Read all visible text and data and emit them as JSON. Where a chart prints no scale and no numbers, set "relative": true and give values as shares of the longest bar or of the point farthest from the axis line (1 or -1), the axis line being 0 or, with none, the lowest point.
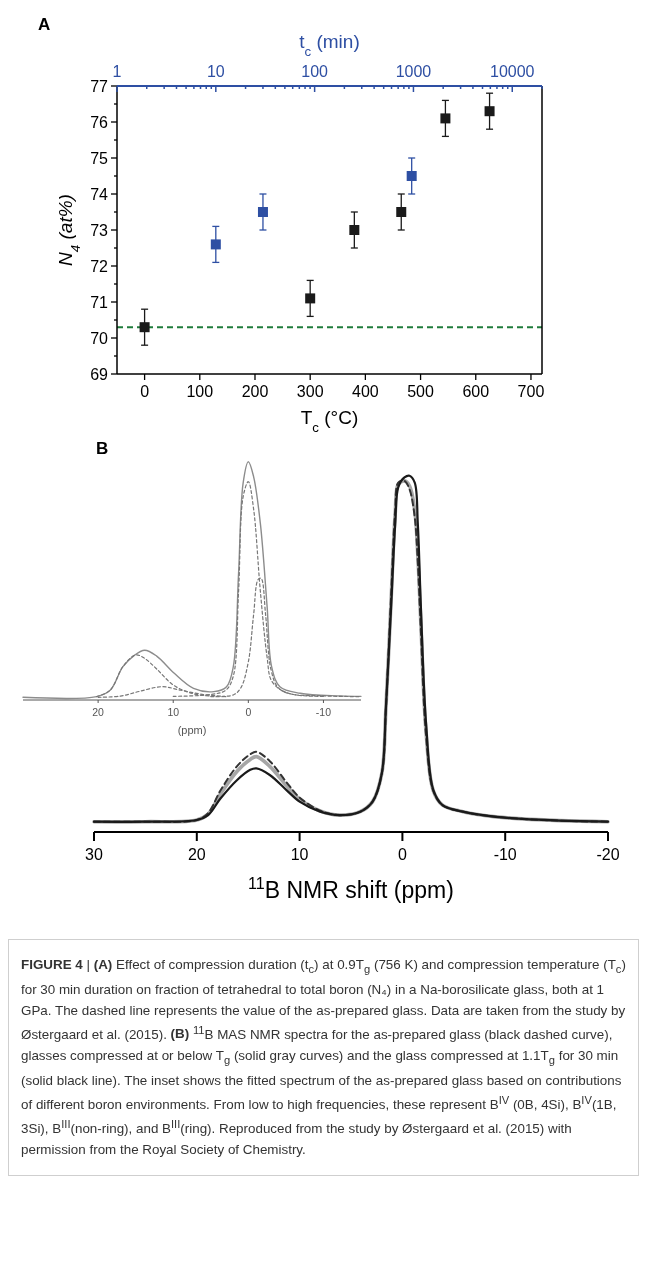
{
  "chart_data": [
    {
      "type": "scatter",
      "title": "A",
      "xlabel": "T$_{c}$ (°C)",
      "x2label": "t$_{c}$ (min)",
      "ylabel": "N$_{4}$ (at%)",
      "marker": "square",
      "log": "x2",
      "xlim": [
        -50,
        720
      ],
      "xticks": [
        0,
        100,
        200,
        300,
        400,
        500,
        600,
        700
      ],
      "x2lim": [
        1,
        20000
      ],
      "x2ticks": [
        1,
        {
          "value": 2,
          "label": null
        },
        {
          "value": 3,
          "label": null
        },
        {
          "value": 4,
          "label": null
        },
        {
          "value": 5,
          "label": null
        },
        {
          "value": 6,
          "label": null
        },
        {
          "value": 7,
          "label": null
        },
        {
          "value": 8,
          "label": null
        },
        {
          "value": 9,
          "label": null
        },
        10,
        {
          "value": 20,
          "label": null
        },
        {
          "value": 30,
          "label": null
        },
        {
          "value": 40,
          "label": null
        },
        {
          "value": 50,
          "label": null
        },
        {
          "value": 60,
          "label": null
        },
        {
          "value": 70,
          "label": null
        },
        {
          "value": 80,
          "label": null
        },
        {
          "value": 90,
          "label": null
        },
        100,
        {
          "value": 200,
          "label": null
        },
        {
          "value": 300,
          "label": null
        },
        {
          "value": 400,
          "label": null
        },
        {
          "value": 500,
          "label": null
        },
        {
          "value": 600,
          "label": null
        },
        {
          "value": 700,
          "label": null
        },
        {
          "value": 800,
          "label": null
        },
        {
          "value": 900,
          "label": null
        },
        1000,
        {
          "value": 2000,
          "label": null
        },
        {
          "value": 3000,
          "label": null
        },
        {
          "value": 4000,
          "label": null
        },
        {
          "value": 5000,
          "label": null
        },
        {
          "value": 6000,
          "label": null
        },
        {
          "value": 7000,
          "label": null
        },
        {
          "value": 8000,
          "label": null
        },
        {
          "value": 9000,
          "label": null
        },
        10000,
        {
          "value": 20000,
          "label": null
        }
      ],
      "ylim": [
        69,
        77
      ],
      "yticks": [
        69,
        {
          "value": 69.5,
          "label": null
        },
        70,
        {
          "value": 70.5,
          "label": null
        },
        71,
        {
          "value": 71.5,
          "label": null
        },
        72,
        {
          "value": 72.5,
          "label": null
        },
        73,
        {
          "value": 73.5,
          "label": null
        },
        74,
        {
          "value": 74.5,
          "label": null
        },
        75,
        {
          "value": 75.5,
          "label": null
        },
        76,
        {
          "value": 76.5,
          "label": null
        },
        77
      ],
      "series": [
        {
          "color": "#1a1a1a",
          "x": [
            0,
            300,
            380,
            465,
            545,
            625
          ],
          "values": [
            70.3,
            71.1,
            73.0,
            73.5,
            76.1,
            76.3
          ],
          "errors": [
            0.5,
            0.5,
            0.5,
            0.5,
            0.5,
            0.5
          ]
        },
        {
          "color": "#2e4fa3",
          "axis": "x2",
          "x": [
            10,
            30,
            960
          ],
          "values": [
            72.6,
            73.5,
            74.5
          ],
          "errors": [
            0.5,
            0.5,
            0.5
          ]
        }
      ],
      "ref_lines": [
        {
          "axis": "y",
          "value": 70.3,
          "color": "#1e7b3a",
          "line_style": "dashed"
        }
      ]
    },
    {
      "type": "line",
      "title": "B",
      "xlabel": "$^{11}$B NMR shift (ppm)",
      "relative": true,
      "tick_labels": "x",
      "xlim": [
        30,
        -20
      ],
      "xticks": [
        30,
        20,
        10,
        0,
        -10,
        -20
      ],
      "series": [
        {
          "color": "#a6a6a6",
          "line_style": "solid",
          "x": [
            30,
            25,
            20,
            18.9,
            17.7,
            16.1,
            14.8,
            14.2,
            12.9,
            11.3,
            10,
            8,
            6.1,
            4.1,
            2.9,
            2.0,
            1.6,
            1.1,
            0.7,
            0.4,
            -0.2,
            -0.7,
            -1.2,
            -1.5,
            -1.8,
            -2.3,
            -3,
            -3.9,
            -5.9,
            -9.1,
            -15.3,
            -20
          ],
          "values": [
            0,
            0,
            0.005,
            0.022,
            0.08,
            0.145,
            0.18,
            0.188,
            0.16,
            0.105,
            0.065,
            0.031,
            0.019,
            0.029,
            0.058,
            0.14,
            0.33,
            0.64,
            0.89,
            0.975,
            0.985,
            0.97,
            0.9,
            0.77,
            0.57,
            0.26,
            0.09,
            0.048,
            0.029,
            0.014,
            0.003,
            0
          ]
        },
        {
          "color": "#333333",
          "line_style": "dashed",
          "x": [
            30,
            25,
            20,
            18.9,
            17.7,
            16.1,
            14.8,
            14.2,
            12.9,
            11.3,
            10,
            8,
            6.1,
            4.1,
            2.9,
            2.0,
            1.6,
            1.1,
            0.7,
            0.4,
            -0.2,
            -0.7,
            -1.2,
            -1.5,
            -1.8,
            -2.3,
            -3,
            -3.9,
            -5.9,
            -9.1,
            -15.3,
            -20
          ],
          "values": [
            0,
            0,
            0.005,
            0.025,
            0.09,
            0.16,
            0.195,
            0.202,
            0.175,
            0.115,
            0.07,
            0.032,
            0.019,
            0.029,
            0.058,
            0.14,
            0.33,
            0.65,
            0.9,
            0.98,
            0.985,
            0.96,
            0.88,
            0.75,
            0.55,
            0.25,
            0.09,
            0.048,
            0.029,
            0.014,
            0.003,
            0
          ]
        },
        {
          "color": "#1a1a1a",
          "line_style": "solid",
          "x": [
            30,
            25,
            20,
            18.9,
            17.7,
            16.1,
            14.8,
            14.2,
            12.9,
            11.3,
            10,
            8,
            6.1,
            4.1,
            2.9,
            2.0,
            1.6,
            1.1,
            0.7,
            0.4,
            -0.2,
            -0.7,
            -1.2,
            -1.5,
            -1.8,
            -2.3,
            -3,
            -3.9,
            -5.9,
            -9.1,
            -15.3,
            -20
          ],
          "values": [
            0,
            0,
            0.005,
            0.019,
            0.067,
            0.12,
            0.15,
            0.154,
            0.135,
            0.092,
            0.058,
            0.029,
            0.019,
            0.029,
            0.058,
            0.14,
            0.332,
            0.62,
            0.86,
            0.967,
            0.995,
            1.0,
            0.98,
            0.86,
            0.62,
            0.285,
            0.092,
            0.048,
            0.029,
            0.014,
            0.003,
            0
          ]
        }
      ]
    },
    {
      "type": "line",
      "xlabel": "(ppm)",
      "relative": true,
      "tick_labels": "x",
      "xlim": [
        30,
        -15
      ],
      "xticks": [
        20,
        10,
        0,
        -10
      ],
      "series": [
        {
          "color": "#8c8c8c",
          "line_style": "solid",
          "x": [
            30,
            20.2,
            18.4,
            16.7,
            15.3,
            13.8,
            12.2,
            9.9,
            7.3,
            4.6,
            2.9,
            2.0,
            1.3,
            0.7,
            0,
            -0.7,
            -1.6,
            -2.5,
            -3.1,
            -4.2,
            -6.9,
            -12.2,
            -15
          ],
          "values": [
            0,
            0.003,
            0.03,
            0.13,
            0.175,
            0.2,
            0.175,
            0.103,
            0.038,
            0.024,
            0.045,
            0.13,
            0.526,
            0.908,
            1.0,
            0.937,
            0.738,
            0.385,
            0.13,
            0.045,
            0.017,
            0.006,
            0.004
          ]
        },
        {
          "color": "#777777",
          "line_style": "dashed",
          "x": [
            20.2,
            18.4,
            16.7,
            15.0,
            13.8,
            12.2,
            9.9,
            7.3,
            4.6
          ],
          "values": [
            0.003,
            0.03,
            0.13,
            0.18,
            0.165,
            0.12,
            0.05,
            0.015,
            0.004
          ]
        },
        {
          "color": "#777777",
          "line_style": "dashed",
          "x": [
            20,
            17,
            14.5,
            11.5,
            9,
            6,
            3
          ],
          "values": [
            0,
            0.005,
            0.025,
            0.045,
            0.03,
            0.012,
            0.003
          ]
        },
        {
          "color": "#777777",
          "line_style": "dashed",
          "x": [
            10,
            5,
            3,
            2,
            1.3,
            0.7,
            0,
            -0.7,
            -1.6,
            -2.5,
            -3.1,
            -5,
            -10,
            -15
          ],
          "values": [
            0.004,
            0.012,
            0.03,
            0.09,
            0.45,
            0.85,
            0.915,
            0.8,
            0.45,
            0.17,
            0.07,
            0.02,
            0.006,
            0.003
          ]
        },
        {
          "color": "#777777",
          "line_style": "dashed",
          "x": [
            5,
            2,
            1,
            0,
            -0.7,
            -1.3,
            -1.7,
            -2.3,
            -3.0,
            -4,
            -6,
            -10
          ],
          "values": [
            0.003,
            0.01,
            0.04,
            0.15,
            0.35,
            0.5,
            0.505,
            0.35,
            0.12,
            0.04,
            0.012,
            0.004
          ]
        }
      ]
    },
    {
      "type": "other",
      "annotations": [
        "FIGURE 4",
        " | ",
        "(A)",
        " Effect of compression duration (t$_{c}$) at 0.9T$_{g}$ (756 K) and compression temperature (T$_{c}$) for 30 min duration on fraction of tetrahedral to total boron (N₄) in a Na-borosilicate glass, both at 1 GPa. The dashed line represents the value of the as-prepared glass. Data are taken from the study by Østergaard et al. (2015). ",
        "(B)",
        " $^{11}$B MAS NMR spectra for the as-prepared glass (black dashed curve), glasses compressed at or below T$_{g}$ (solid gray curves) and the glass compressed at 1.1T$_{g}$ for 30 min (solid black line). The inset shows the fitted spectrum of the as-prepared glass based on contributions of different boron environments. From low to high frequencies, these represent B$^{IV}$ (0B, 4Si), B$^{IV}$(1B, 3Si), B$^{III}$(non-ring), and B$^{III}$(ring). Reproduced from the study by Østergaard et al. (2015) with permission from the Royal Society of Chemistry."
      ]
    }
  ]
}
